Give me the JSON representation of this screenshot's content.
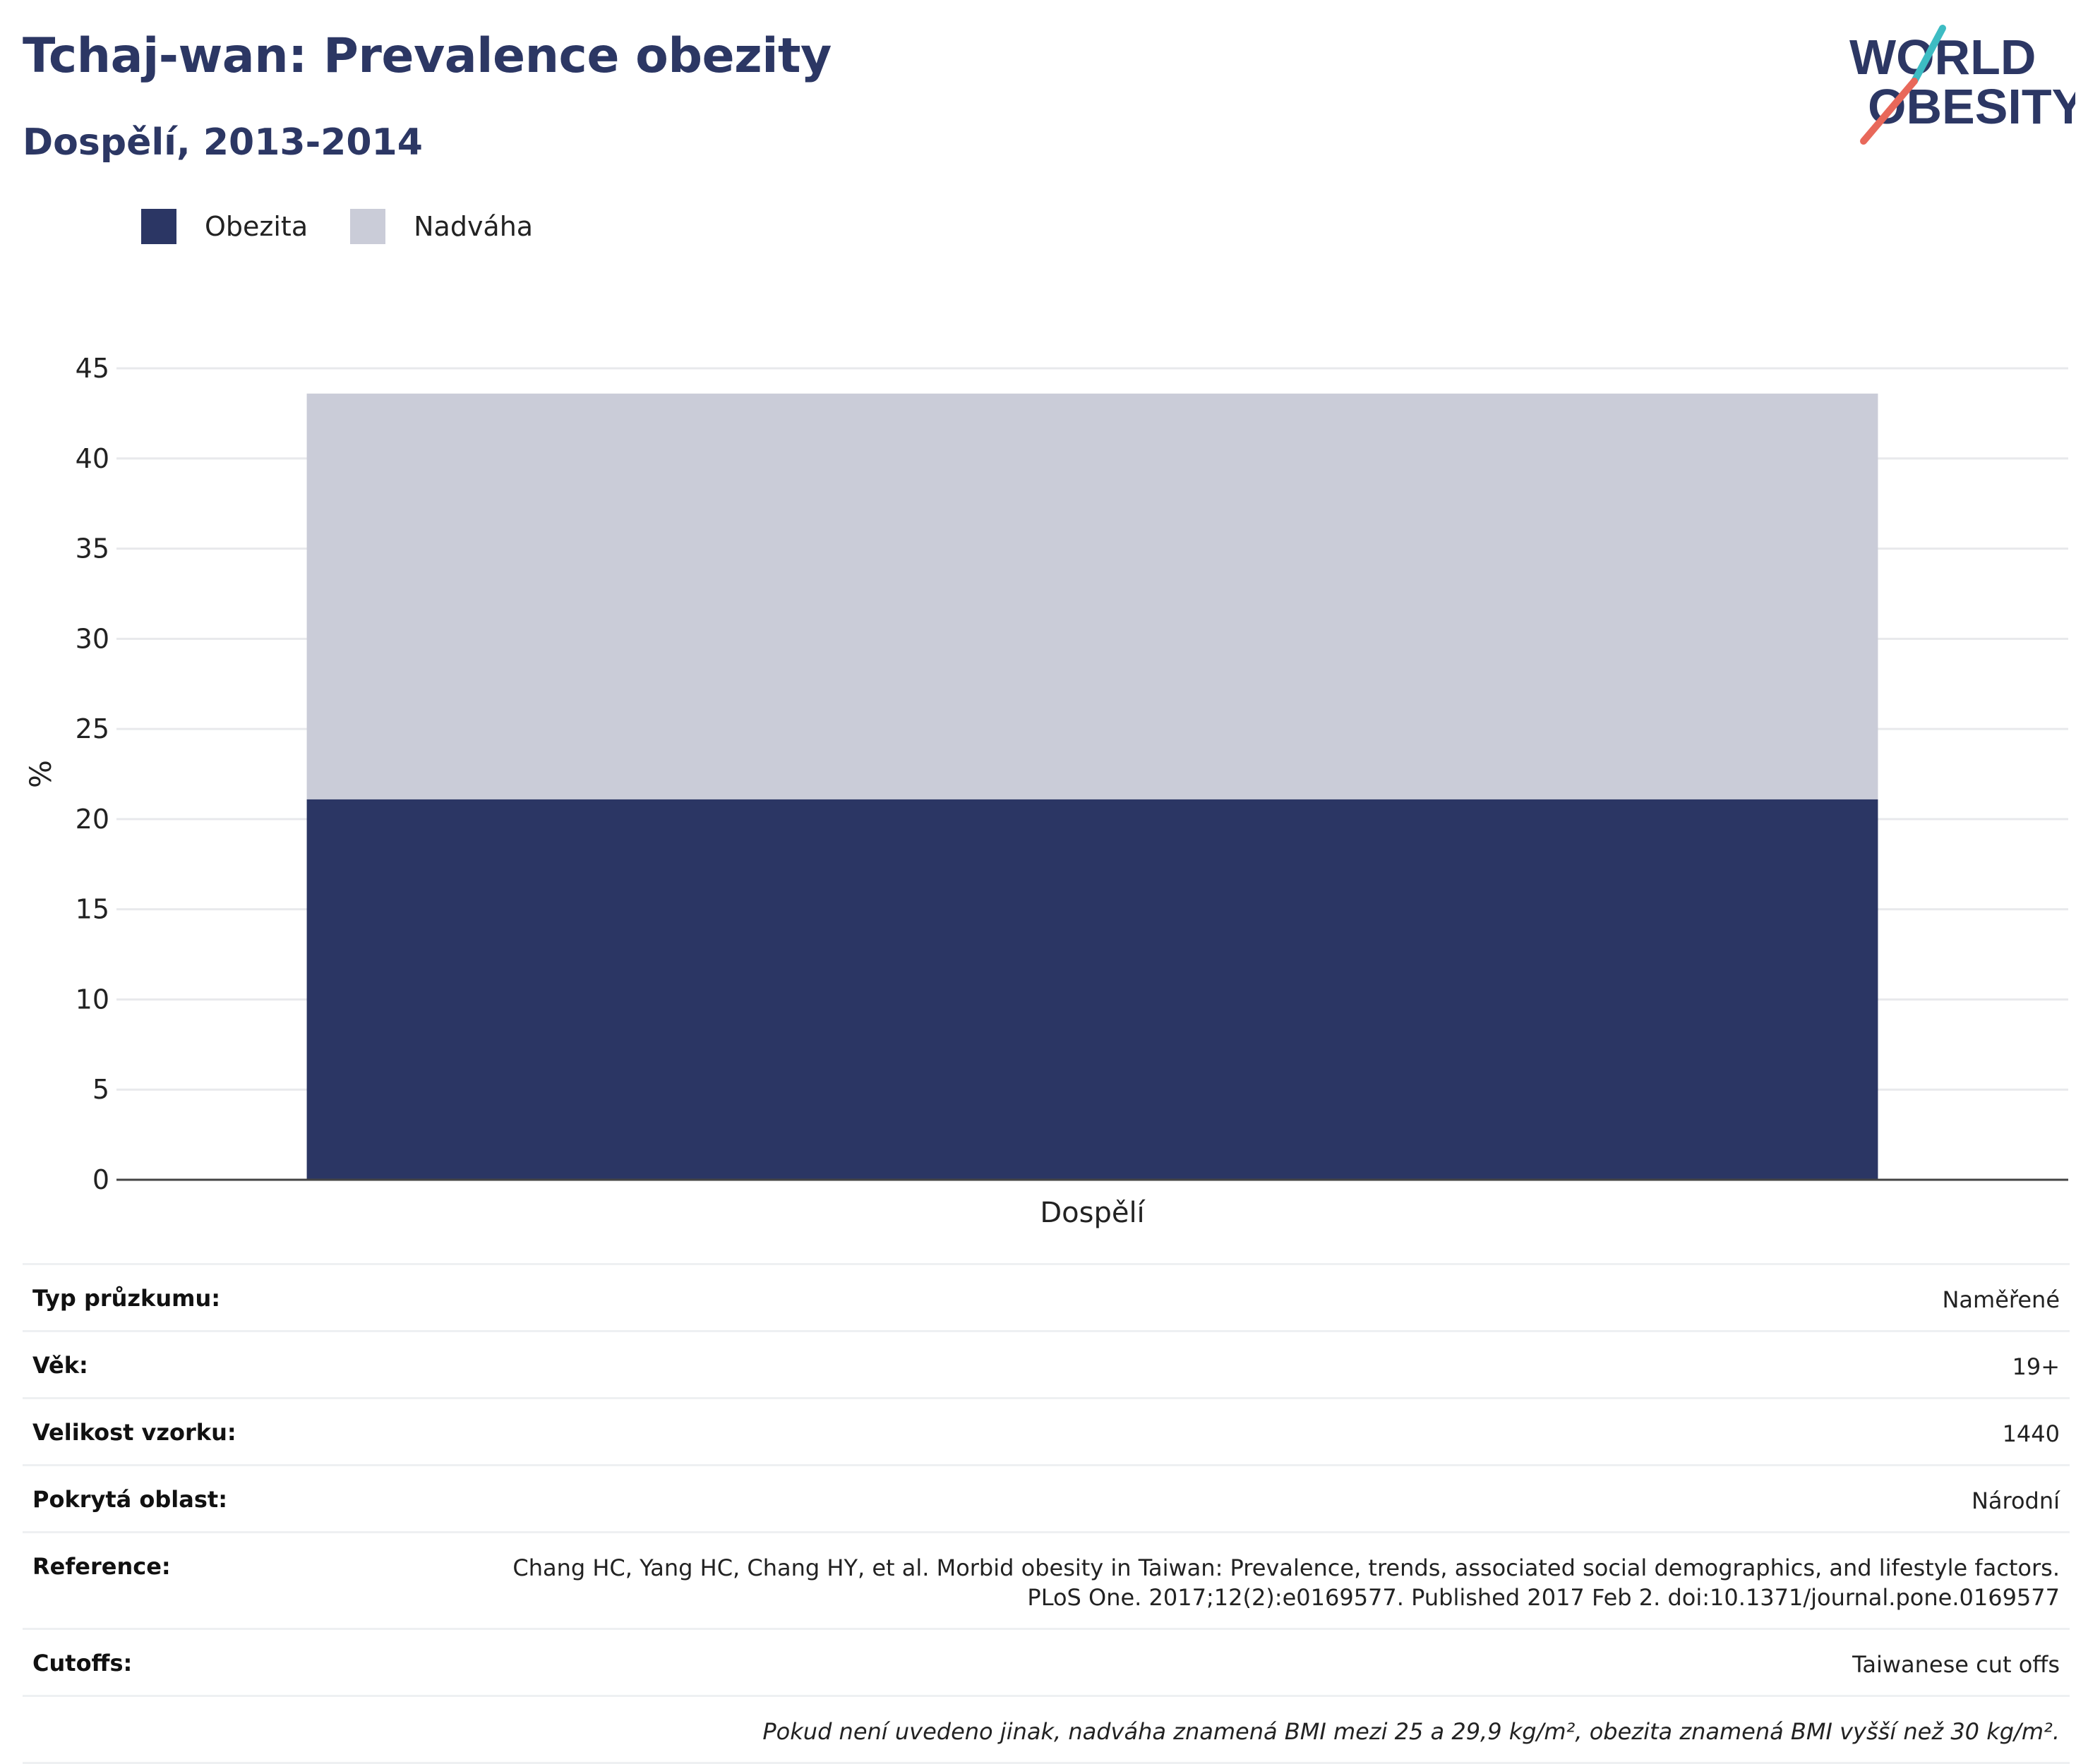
{
  "title": "Tchaj-wan: Prevalence obezity",
  "subtitle": "Dospělí, 2013-2014",
  "logo": {
    "line1": "WORLD",
    "line2": "OBESITY"
  },
  "colors": {
    "obesity": "#2b3664",
    "overweight": "#caccd8",
    "title": "#2c3764",
    "logo_teal": "#3dbcc3",
    "logo_red": "#e8685a"
  },
  "legend": [
    {
      "label": "Obezita",
      "color": "#2b3664"
    },
    {
      "label": "Nadváha",
      "color": "#caccd8"
    }
  ],
  "chart_data": {
    "type": "bar",
    "stacked": true,
    "categories": [
      "Dospělí"
    ],
    "series": [
      {
        "name": "Obezita",
        "values": [
          21.1
        ]
      },
      {
        "name": "Nadváha",
        "values": [
          22.5
        ]
      }
    ],
    "ylabel": "%",
    "xlabel": "",
    "ylim": [
      0,
      45
    ],
    "yticks": [
      0,
      5,
      10,
      15,
      20,
      25,
      30,
      35,
      40,
      45
    ],
    "grid": true,
    "legend_position": "top-left"
  },
  "meta": [
    {
      "label": "Typ průzkumu:",
      "value": "Naměřené"
    },
    {
      "label": "Věk:",
      "value": "19+"
    },
    {
      "label": "Velikost vzorku:",
      "value": "1440"
    },
    {
      "label": "Pokrytá oblast:",
      "value": "Národní"
    },
    {
      "label": "Reference:",
      "value": "Chang HC, Yang HC, Chang HY, et al. Morbid obesity in Taiwan: Prevalence, trends, associated social demographics, and lifestyle factors. PLoS One. 2017;12(2):e0169577. Published 2017 Feb 2. doi:10.1371/journal.pone.0169577"
    },
    {
      "label": "Cutoffs:",
      "value": "Taiwanese cut offs"
    }
  ],
  "note": "Pokud není uvedeno jinak, nadváha znamená BMI mezi 25 a 29,9 kg/m², obezita znamená BMI vyšší než 30 kg/m²."
}
